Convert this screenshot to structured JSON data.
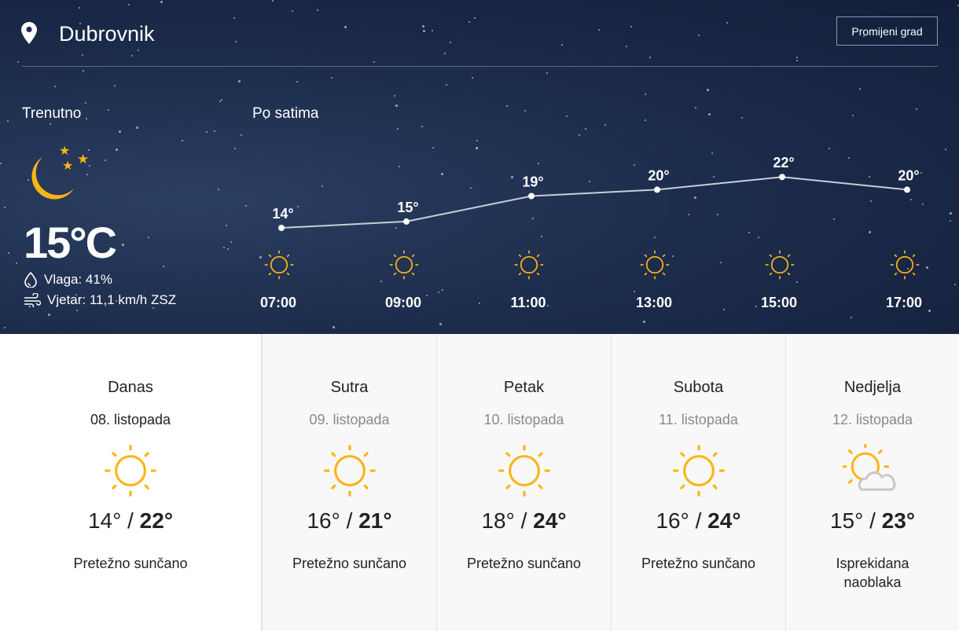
{
  "header": {
    "city": "Dubrovnik",
    "change_city_label": "Promijeni grad"
  },
  "current": {
    "label": "Trenutno",
    "temperature": "15°C",
    "humidity": "Vlaga: 41%",
    "wind": "Vjetar: 11,1 km/h ZSZ",
    "icon": "moon-stars-icon"
  },
  "hourly": {
    "label": "Po satima",
    "items": [
      {
        "time": "07:00",
        "temp": 14,
        "temp_label": "14°",
        "icon": "sun-icon"
      },
      {
        "time": "09:00",
        "temp": 15,
        "temp_label": "15°",
        "icon": "sun-icon"
      },
      {
        "time": "11:00",
        "temp": 19,
        "temp_label": "19°",
        "icon": "sun-icon"
      },
      {
        "time": "13:00",
        "temp": 20,
        "temp_label": "20°",
        "icon": "sun-icon"
      },
      {
        "time": "15:00",
        "temp": 22,
        "temp_label": "22°",
        "icon": "sun-icon"
      },
      {
        "time": "17:00",
        "temp": 20,
        "temp_label": "20°",
        "icon": "sun-icon"
      }
    ]
  },
  "days": [
    {
      "name": "Danas",
      "date": "08. listopada",
      "min": "14°",
      "max": "22°",
      "desc": "Pretežno sunčano",
      "icon": "sun-icon"
    },
    {
      "name": "Sutra",
      "date": "09. listopada",
      "min": "16°",
      "max": "21°",
      "desc": "Pretežno sunčano",
      "icon": "sun-icon"
    },
    {
      "name": "Petak",
      "date": "10. listopada",
      "min": "18°",
      "max": "24°",
      "desc": "Pretežno sunčano",
      "icon": "sun-icon"
    },
    {
      "name": "Subota",
      "date": "11. listopada",
      "min": "16°",
      "max": "24°",
      "desc": "Pretežno sunčano",
      "icon": "sun-icon"
    },
    {
      "name": "Nedjelja",
      "date": "12. listopada",
      "min": "15°",
      "max": "23°",
      "desc": "Isprekidana naoblaka",
      "icon": "partly-cloudy-icon"
    }
  ],
  "colors": {
    "sun": "#fbb414",
    "cloud": "#c8c8c8",
    "hero_bg": "#1d2d4d"
  }
}
